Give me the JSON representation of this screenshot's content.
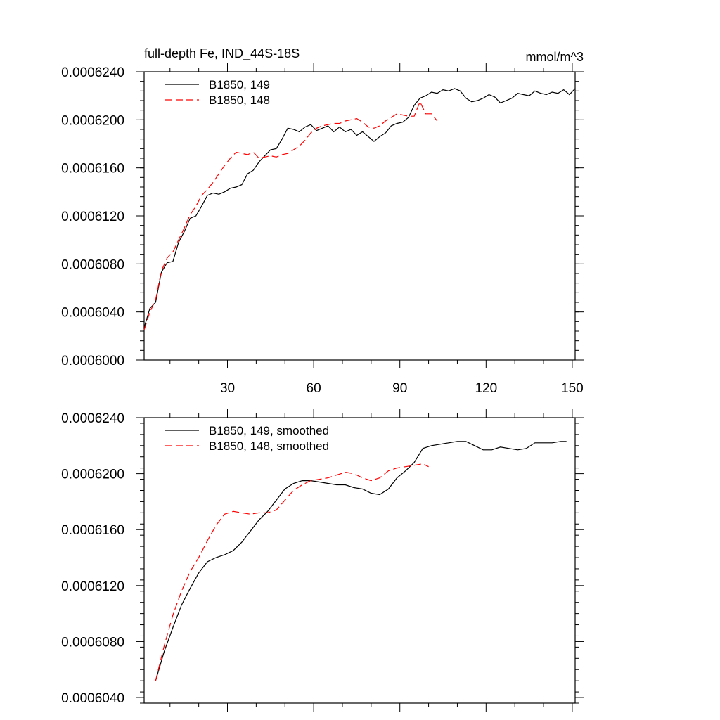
{
  "chart_data": [
    {
      "type": "line",
      "title": "full-depth Fe, IND_44S-18S",
      "units": "mmol/m^3",
      "xlim": [
        1,
        151
      ],
      "ylim": [
        0.0006,
        0.000624
      ],
      "x_ticks": [
        30,
        60,
        90,
        120,
        150
      ],
      "x_tick_labels": [
        "30",
        "60",
        "90",
        "120",
        "150"
      ],
      "y_ticks": [
        0.0006,
        0.000604,
        0.000608,
        0.000612,
        0.000616,
        0.00062,
        0.000624
      ],
      "y_tick_labels": [
        "0.0006000",
        "0.0006040",
        "0.0006080",
        "0.0006120",
        "0.0006160",
        "0.0006200",
        "0.0006240"
      ],
      "legend": {
        "placement": "top-left"
      },
      "series": [
        {
          "name": "B1850, 149",
          "color": "#000000",
          "dash": "solid",
          "x": [
            1,
            3,
            5,
            7,
            9,
            11,
            13,
            15,
            17,
            19,
            21,
            23,
            25,
            27,
            29,
            31,
            33,
            35,
            37,
            39,
            41,
            43,
            45,
            47,
            49,
            51,
            53,
            55,
            57,
            59,
            61,
            63,
            65,
            67,
            69,
            71,
            73,
            75,
            77,
            79,
            81,
            83,
            85,
            87,
            89,
            91,
            93,
            95,
            97,
            99,
            101,
            103,
            105,
            107,
            109,
            111,
            113,
            115,
            117,
            119,
            121,
            123,
            125,
            127,
            129,
            131,
            133,
            135,
            137,
            139,
            141,
            143,
            145,
            147,
            149,
            151
          ],
          "y": [
            0.0006027,
            0.0006043,
            0.0006048,
            0.0006073,
            0.0006081,
            0.0006082,
            0.0006098,
            0.0006107,
            0.0006118,
            0.000612,
            0.0006128,
            0.0006137,
            0.0006139,
            0.0006138,
            0.000614,
            0.0006143,
            0.0006144,
            0.0006146,
            0.0006155,
            0.0006158,
            0.0006165,
            0.000617,
            0.0006175,
            0.0006176,
            0.0006184,
            0.0006193,
            0.0006192,
            0.000619,
            0.0006194,
            0.0006196,
            0.0006191,
            0.0006193,
            0.0006195,
            0.000619,
            0.0006194,
            0.000619,
            0.0006192,
            0.0006187,
            0.000619,
            0.0006186,
            0.0006182,
            0.0006186,
            0.0006189,
            0.0006195,
            0.0006197,
            0.0006198,
            0.0006202,
            0.0006212,
            0.0006218,
            0.000622,
            0.0006223,
            0.0006222,
            0.0006225,
            0.0006224,
            0.0006226,
            0.0006224,
            0.0006218,
            0.0006215,
            0.0006216,
            0.0006218,
            0.0006221,
            0.0006219,
            0.0006214,
            0.0006216,
            0.0006218,
            0.0006222,
            0.0006221,
            0.000622,
            0.0006224,
            0.0006222,
            0.0006221,
            0.0006223,
            0.0006222,
            0.0006225,
            0.0006221,
            0.0006226
          ]
        },
        {
          "name": "B1850, 148",
          "color": "#ff0000",
          "dash": "dashed",
          "x": [
            1,
            3,
            5,
            7,
            9,
            11,
            13,
            15,
            17,
            19,
            21,
            23,
            25,
            27,
            29,
            31,
            33,
            35,
            37,
            39,
            41,
            43,
            45,
            47,
            49,
            51,
            53,
            55,
            57,
            59,
            61,
            63,
            65,
            67,
            69,
            71,
            73,
            75,
            77,
            79,
            81,
            83,
            85,
            87,
            89,
            91,
            93,
            95,
            97,
            99,
            101,
            103
          ],
          "y": [
            0.0006025,
            0.000604,
            0.000605,
            0.0006074,
            0.0006085,
            0.000609,
            0.00061,
            0.000611,
            0.0006121,
            0.0006128,
            0.0006137,
            0.0006142,
            0.0006148,
            0.0006155,
            0.0006162,
            0.0006168,
            0.0006173,
            0.0006172,
            0.0006171,
            0.0006173,
            0.0006168,
            0.0006169,
            0.000617,
            0.0006169,
            0.0006171,
            0.0006172,
            0.0006175,
            0.0006178,
            0.0006183,
            0.0006189,
            0.0006193,
            0.0006195,
            0.0006196,
            0.0006197,
            0.0006197,
            0.0006199,
            0.00062,
            0.0006201,
            0.0006198,
            0.0006194,
            0.0006193,
            0.0006195,
            0.0006199,
            0.0006202,
            0.0006205,
            0.0006204,
            0.0006203,
            0.0006203,
            0.0006215,
            0.0006205,
            0.0006205,
            0.0006199
          ]
        }
      ]
    },
    {
      "type": "line",
      "title": "",
      "xlim": [
        1,
        151
      ],
      "ylim": [
        0.0006036,
        0.000624
      ],
      "x_ticks": [
        30,
        60,
        90,
        120,
        150
      ],
      "y_ticks": [
        0.000604,
        0.000608,
        0.000612,
        0.000616,
        0.00062,
        0.000624
      ],
      "y_tick_labels": [
        "0.0006040",
        "0.0006080",
        "0.0006120",
        "0.0006160",
        "0.0006200",
        "0.0006240"
      ],
      "legend": {
        "placement": "top-left"
      },
      "series": [
        {
          "name": "B1850, 149, smoothed",
          "color": "#000000",
          "dash": "solid",
          "x": [
            5,
            8,
            11,
            14,
            17,
            20,
            23,
            26,
            29,
            32,
            35,
            38,
            41,
            44,
            47,
            50,
            53,
            56,
            59,
            62,
            65,
            68,
            71,
            74,
            77,
            80,
            83,
            86,
            89,
            92,
            95,
            98,
            101,
            104,
            107,
            110,
            113,
            116,
            119,
            122,
            125,
            128,
            131,
            134,
            137,
            140,
            143,
            146,
            148
          ],
          "y": [
            0.0006052,
            0.0006073,
            0.000609,
            0.0006106,
            0.0006118,
            0.0006129,
            0.0006137,
            0.000614,
            0.0006142,
            0.0006145,
            0.0006151,
            0.0006159,
            0.0006167,
            0.0006173,
            0.0006181,
            0.0006189,
            0.0006193,
            0.0006195,
            0.0006195,
            0.0006194,
            0.0006193,
            0.0006192,
            0.0006192,
            0.000619,
            0.0006189,
            0.0006186,
            0.0006185,
            0.0006189,
            0.0006197,
            0.0006202,
            0.0006208,
            0.0006218,
            0.000622,
            0.0006221,
            0.0006222,
            0.0006223,
            0.0006223,
            0.000622,
            0.0006217,
            0.0006217,
            0.0006219,
            0.0006218,
            0.0006217,
            0.0006218,
            0.0006222,
            0.0006222,
            0.0006222,
            0.0006223,
            0.0006223
          ]
        },
        {
          "name": "B1850, 148, smoothed",
          "color": "#ff0000",
          "dash": "dashed",
          "x": [
            5,
            8,
            11,
            14,
            17,
            20,
            23,
            26,
            29,
            32,
            35,
            38,
            41,
            44,
            47,
            50,
            53,
            56,
            59,
            62,
            65,
            68,
            71,
            74,
            77,
            80,
            83,
            86,
            89,
            92,
            95,
            98,
            100
          ],
          "y": [
            0.0006052,
            0.0006077,
            0.0006099,
            0.0006116,
            0.000613,
            0.000614,
            0.0006152,
            0.0006163,
            0.0006171,
            0.0006173,
            0.0006172,
            0.0006171,
            0.0006172,
            0.0006172,
            0.0006174,
            0.0006181,
            0.0006188,
            0.0006192,
            0.0006195,
            0.0006196,
            0.0006197,
            0.0006199,
            0.0006201,
            0.00062,
            0.0006197,
            0.0006195,
            0.0006197,
            0.0006202,
            0.0006204,
            0.0006205,
            0.0006206,
            0.0006207,
            0.0006205
          ]
        }
      ]
    }
  ]
}
